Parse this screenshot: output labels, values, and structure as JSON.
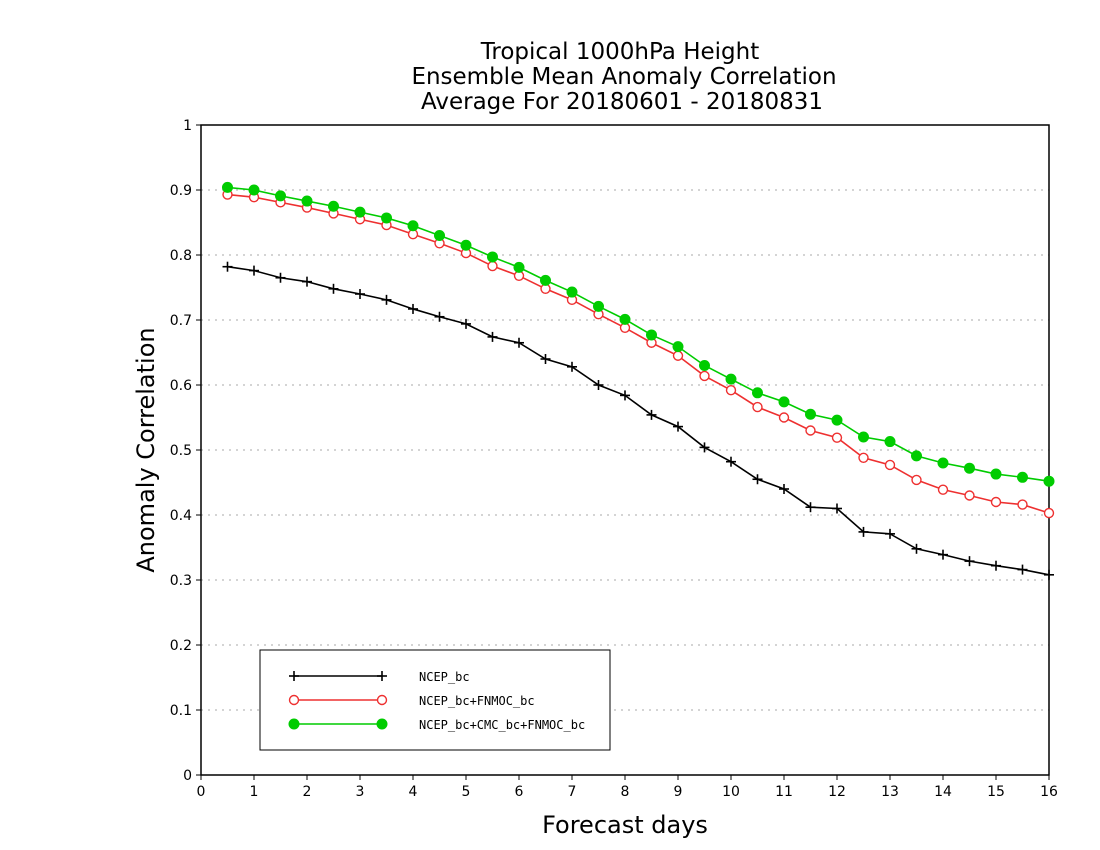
{
  "chart_data": {
    "type": "line",
    "title_lines": [
      "Tropical 1000hPa Height",
      "Ensemble Mean Anomaly Correlation",
      "Average For 20180601 - 20180831"
    ],
    "xlabel": "Forecast days",
    "ylabel": "Anomaly Correlation",
    "xlim": [
      0,
      16
    ],
    "ylim": [
      0,
      1
    ],
    "x_ticks": [
      "0",
      "1",
      "2",
      "3",
      "4",
      "5",
      "6",
      "7",
      "8",
      "9",
      "10",
      "11",
      "12",
      "13",
      "14",
      "15",
      "16"
    ],
    "y_ticks": [
      "0",
      "0.1",
      "0.2",
      "0.3",
      "0.4",
      "0.5",
      "0.6",
      "0.7",
      "0.8",
      "0.9",
      "1"
    ],
    "grid": true,
    "legend_position": "bottom-left",
    "x": [
      0.5,
      1,
      1.5,
      2,
      2.5,
      3,
      3.5,
      4,
      4.5,
      5,
      5.5,
      6,
      6.5,
      7,
      7.5,
      8,
      8.5,
      9,
      9.5,
      10,
      10.5,
      11,
      11.5,
      12,
      12.5,
      13,
      13.5,
      14,
      14.5,
      15,
      15.5,
      16
    ],
    "series": [
      {
        "name": "NCEP_bc",
        "color": "#000000",
        "marker": "plus",
        "values": [
          0.782,
          0.776,
          0.765,
          0.759,
          0.748,
          0.74,
          0.731,
          0.717,
          0.705,
          0.694,
          0.674,
          0.665,
          0.64,
          0.628,
          0.6,
          0.584,
          0.554,
          0.536,
          0.504,
          0.482,
          0.455,
          0.44,
          0.412,
          0.41,
          0.374,
          0.371,
          0.348,
          0.339,
          0.329,
          0.322,
          0.316,
          0.308
        ]
      },
      {
        "name": "NCEP_bc+FNMOC_bc",
        "color": "#ee3030",
        "marker": "open-circle",
        "values": [
          0.893,
          0.889,
          0.881,
          0.873,
          0.864,
          0.855,
          0.846,
          0.832,
          0.818,
          0.803,
          0.783,
          0.768,
          0.748,
          0.731,
          0.709,
          0.688,
          0.665,
          0.645,
          0.614,
          0.592,
          0.566,
          0.55,
          0.53,
          0.519,
          0.488,
          0.477,
          0.454,
          0.439,
          0.43,
          0.42,
          0.416,
          0.403
        ]
      },
      {
        "name": "NCEP_bc+CMC_bc+FNMOC_bc",
        "color": "#00cc00",
        "marker": "filled-circle",
        "values": [
          0.904,
          0.9,
          0.891,
          0.883,
          0.875,
          0.866,
          0.857,
          0.845,
          0.83,
          0.815,
          0.797,
          0.781,
          0.761,
          0.743,
          0.721,
          0.701,
          0.677,
          0.659,
          0.63,
          0.609,
          0.588,
          0.574,
          0.555,
          0.546,
          0.52,
          0.513,
          0.491,
          0.48,
          0.472,
          0.463,
          0.458,
          0.452
        ]
      }
    ]
  }
}
